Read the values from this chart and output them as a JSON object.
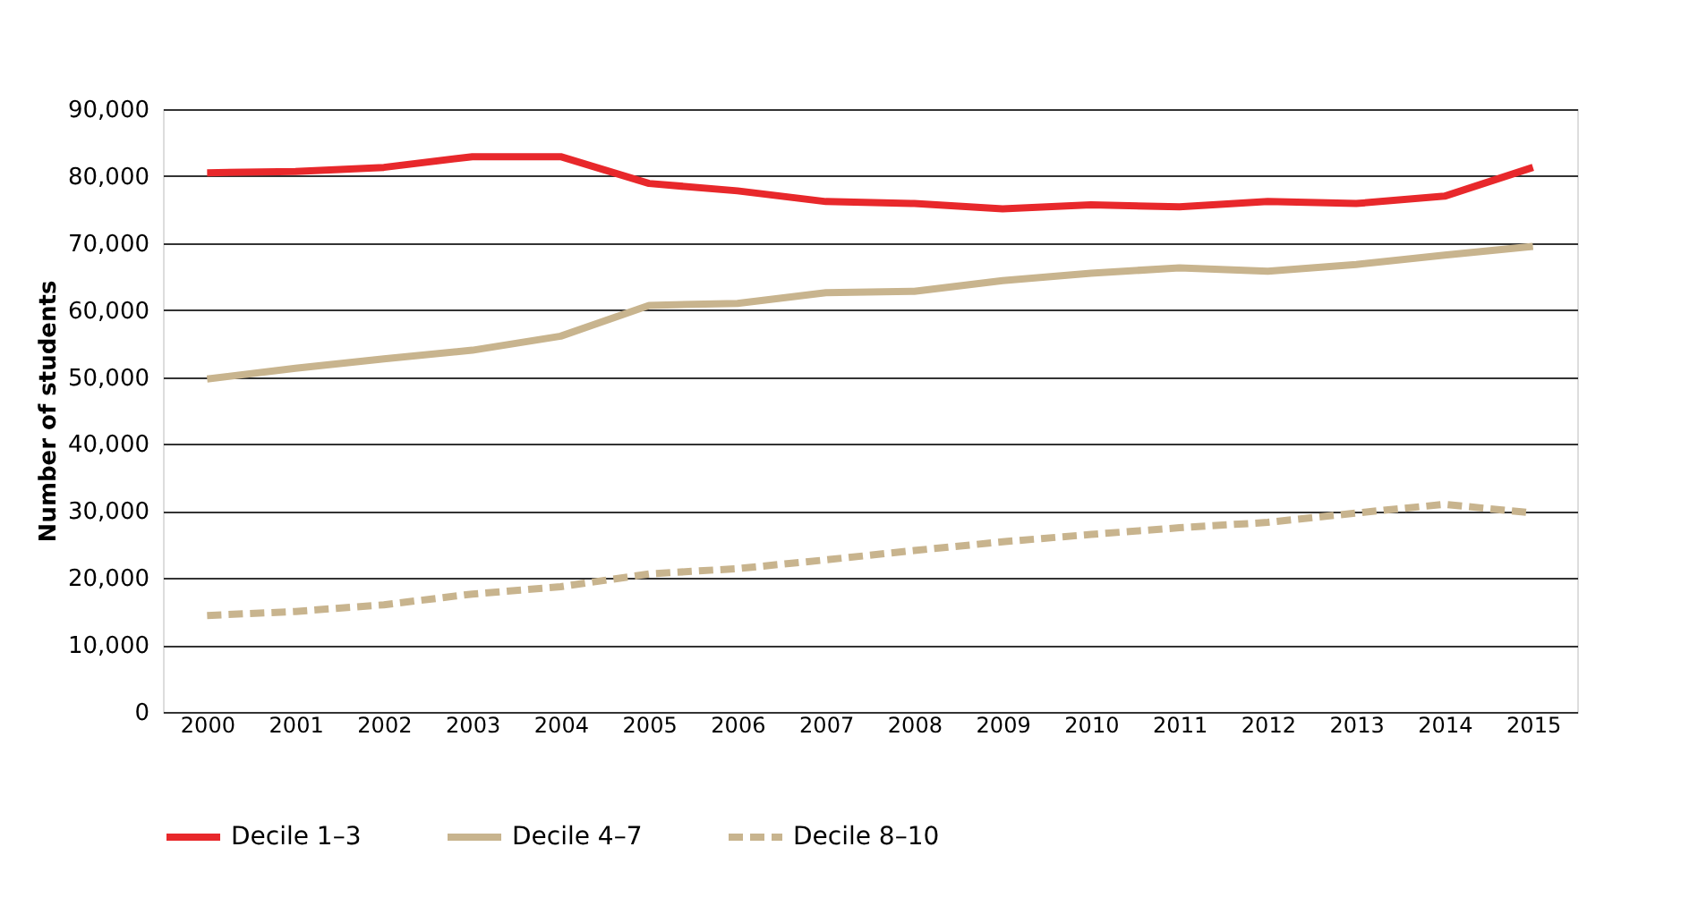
{
  "chart_data": {
    "type": "line",
    "ylabel": "Number of students",
    "categories": [
      "2000",
      "2001",
      "2002",
      "2003",
      "2004",
      "2005",
      "2006",
      "2007",
      "2008",
      "2009",
      "2010",
      "2011",
      "2012",
      "2013",
      "2014",
      "2015"
    ],
    "series": [
      {
        "name": "Decile 1–3",
        "color": "#e8282b",
        "line_style": "solid",
        "values": [
          80500,
          80700,
          81300,
          82900,
          82900,
          78900,
          77800,
          76200,
          75900,
          75100,
          75700,
          75400,
          76200,
          75900,
          77000,
          81300
        ]
      },
      {
        "name": "Decile 4–7",
        "color": "#c8b48e",
        "line_style": "solid",
        "values": [
          49700,
          51300,
          52700,
          54000,
          56100,
          60700,
          61000,
          62600,
          62800,
          64400,
          65500,
          66300,
          65800,
          66800,
          68200,
          69500
        ]
      },
      {
        "name": "Decile 8–10",
        "color": "#c8b48e",
        "line_style": "dashed",
        "values": [
          14400,
          15000,
          16000,
          17600,
          18700,
          20600,
          21400,
          22700,
          24100,
          25400,
          26500,
          27500,
          28300,
          29700,
          31000,
          29700
        ]
      }
    ],
    "ylim": [
      0,
      90000
    ],
    "yticks": [
      0,
      {
        "value": 10000,
        "label": "10,000"
      },
      {
        "value": 20000,
        "label": "20,000"
      },
      {
        "value": 30000,
        "label": "30,000"
      },
      {
        "value": 40000,
        "label": "40,000"
      },
      {
        "value": 50000,
        "label": "50,000"
      },
      {
        "value": 60000,
        "label": "60,000"
      },
      {
        "value": 70000,
        "label": "70,000"
      },
      {
        "value": 80000,
        "label": "80,000"
      },
      {
        "value": 90000,
        "label": "90,000"
      }
    ],
    "grid": "y",
    "legend": "bottom"
  }
}
